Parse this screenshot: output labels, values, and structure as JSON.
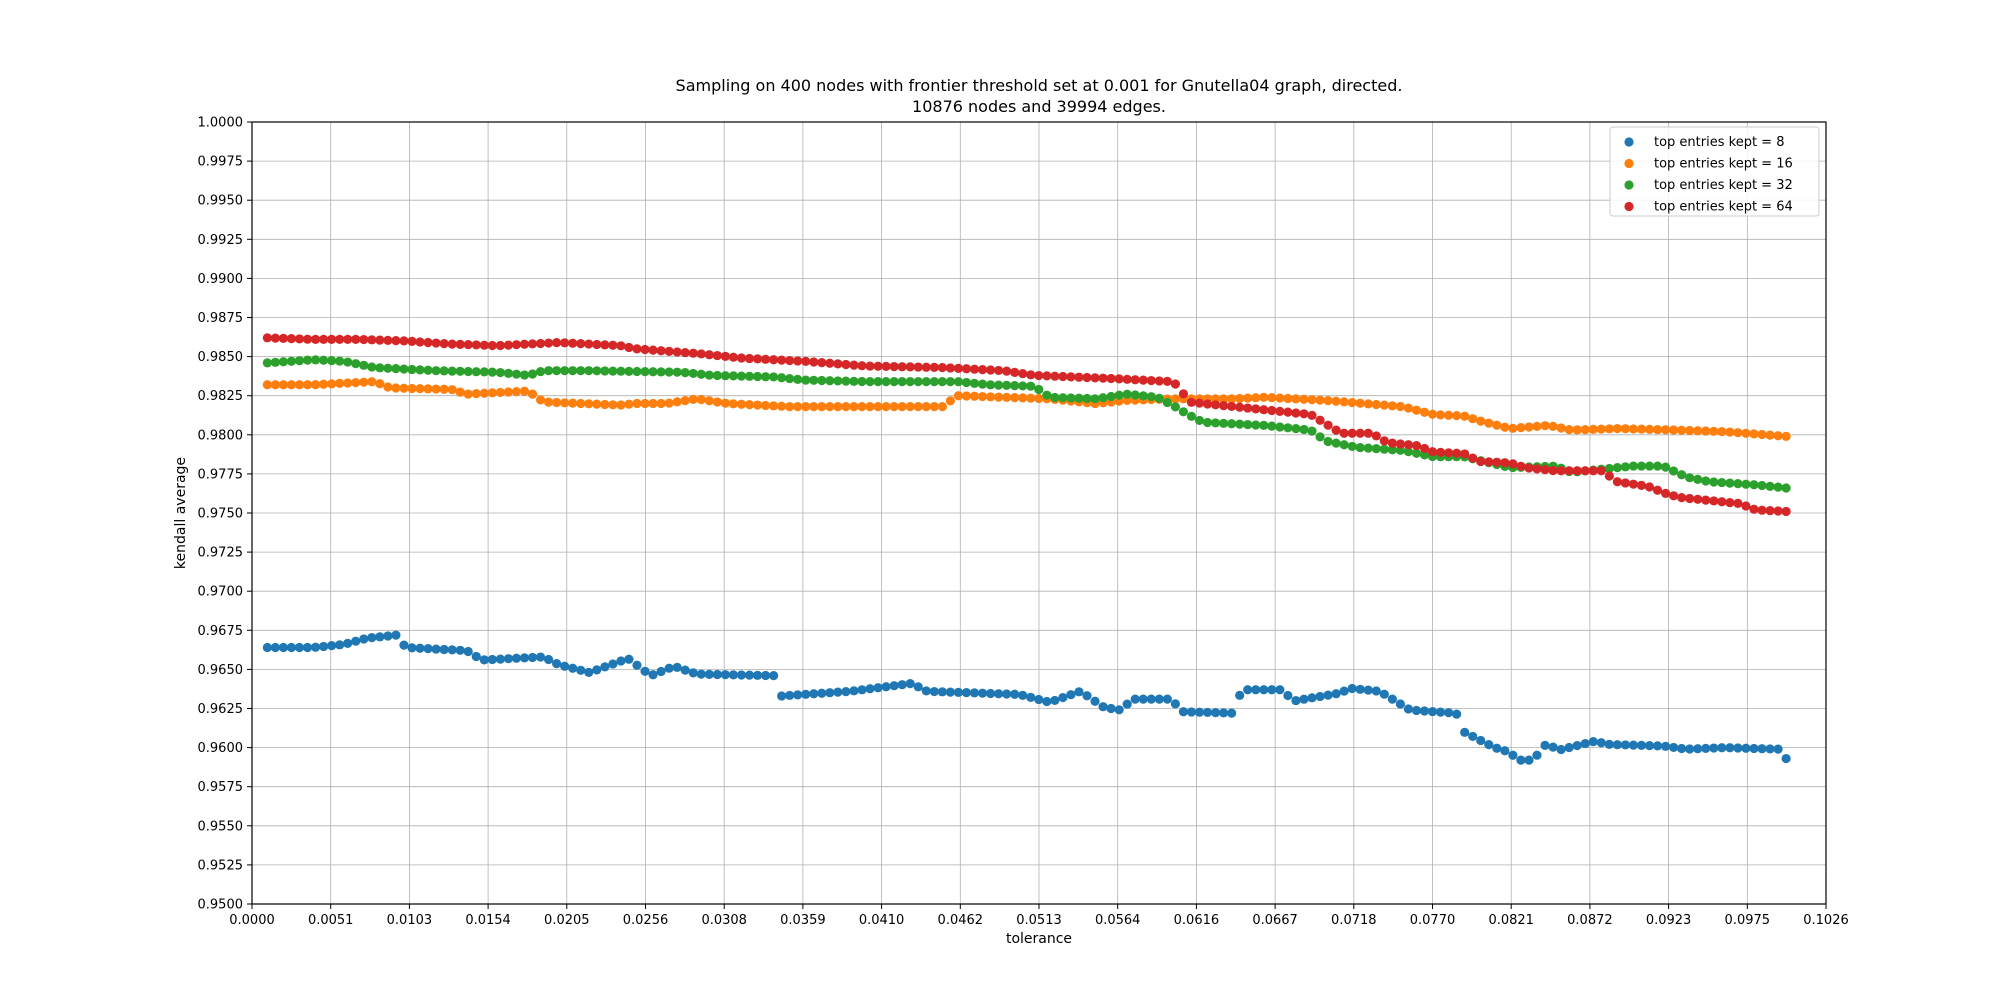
{
  "chart_data": {
    "type": "scatter",
    "title": "Sampling on 400 nodes with frontier threshold set at 0.001 for Gnutella04 graph, directed.",
    "subtitle": "10876 nodes and 39994 edges.",
    "xlabel": "tolerance",
    "ylabel": "kendall average",
    "xlim": [
      0.0,
      0.1026
    ],
    "ylim": [
      0.95,
      1.0
    ],
    "xticks": [
      "0.0000",
      "0.0051",
      "0.0103",
      "0.0154",
      "0.0205",
      "0.0256",
      "0.0308",
      "0.0359",
      "0.0410",
      "0.0462",
      "0.0513",
      "0.0564",
      "0.0616",
      "0.0667",
      "0.0718",
      "0.0770",
      "0.0821",
      "0.0872",
      "0.0923",
      "0.0975",
      "0.1026"
    ],
    "yticks": [
      "0.9500",
      "0.9525",
      "0.9550",
      "0.9575",
      "0.9600",
      "0.9625",
      "0.9650",
      "0.9675",
      "0.9700",
      "0.9725",
      "0.9750",
      "0.9775",
      "0.9800",
      "0.9825",
      "0.9850",
      "0.9875",
      "0.9900",
      "0.9925",
      "0.9950",
      "0.9975",
      "1.0000"
    ],
    "grid": true,
    "legend_position": "top-right",
    "x_range_points": [
      0.001,
      0.1
    ],
    "points_per_series": 190,
    "series": [
      {
        "name": "top entries kept = 8",
        "color": "#1f77b4",
        "anchors": [
          [
            0.001,
            0.9664
          ],
          [
            0.004,
            0.9664
          ],
          [
            0.006,
            0.9666
          ],
          [
            0.0075,
            0.967
          ],
          [
            0.0095,
            0.9672
          ],
          [
            0.01,
            0.9664
          ],
          [
            0.014,
            0.9662
          ],
          [
            0.015,
            0.9656
          ],
          [
            0.019,
            0.9658
          ],
          [
            0.02,
            0.9653
          ],
          [
            0.022,
            0.9648
          ],
          [
            0.0245,
            0.9657
          ],
          [
            0.026,
            0.9646
          ],
          [
            0.0275,
            0.9652
          ],
          [
            0.029,
            0.9647
          ],
          [
            0.034,
            0.9646
          ],
          [
            0.0345,
            0.9633
          ],
          [
            0.039,
            0.9636
          ],
          [
            0.043,
            0.9641
          ],
          [
            0.044,
            0.9636
          ],
          [
            0.05,
            0.9634
          ],
          [
            0.052,
            0.9629
          ],
          [
            0.054,
            0.9636
          ],
          [
            0.0555,
            0.9626
          ],
          [
            0.0565,
            0.9624
          ],
          [
            0.0575,
            0.9631
          ],
          [
            0.06,
            0.9631
          ],
          [
            0.0605,
            0.9623
          ],
          [
            0.064,
            0.9622
          ],
          [
            0.0645,
            0.9637
          ],
          [
            0.067,
            0.9637
          ],
          [
            0.068,
            0.963
          ],
          [
            0.071,
            0.9635
          ],
          [
            0.0715,
            0.9638
          ],
          [
            0.0735,
            0.9636
          ],
          [
            0.0755,
            0.9624
          ],
          [
            0.0785,
            0.9622
          ],
          [
            0.079,
            0.961
          ],
          [
            0.081,
            0.96
          ],
          [
            0.082,
            0.9597
          ],
          [
            0.0825,
            0.9592
          ],
          [
            0.0835,
            0.9592
          ],
          [
            0.0845,
            0.9604
          ],
          [
            0.085,
            0.9598
          ],
          [
            0.0875,
            0.9604
          ],
          [
            0.0885,
            0.9602
          ],
          [
            0.092,
            0.9601
          ],
          [
            0.0935,
            0.9599
          ],
          [
            0.096,
            0.96
          ],
          [
            0.0995,
            0.9599
          ],
          [
            0.1,
            0.9593
          ]
        ]
      },
      {
        "name": "top entries kept = 16",
        "color": "#ff7f0e",
        "anchors": [
          [
            0.001,
            0.9832
          ],
          [
            0.004,
            0.9832
          ],
          [
            0.008,
            0.9834
          ],
          [
            0.009,
            0.983
          ],
          [
            0.013,
            0.9829
          ],
          [
            0.014,
            0.9826
          ],
          [
            0.018,
            0.9828
          ],
          [
            0.019,
            0.9821
          ],
          [
            0.024,
            0.9819
          ],
          [
            0.025,
            0.982
          ],
          [
            0.027,
            0.982
          ],
          [
            0.029,
            0.9823
          ],
          [
            0.031,
            0.982
          ],
          [
            0.035,
            0.9818
          ],
          [
            0.045,
            0.9818
          ],
          [
            0.046,
            0.9825
          ],
          [
            0.052,
            0.9823
          ],
          [
            0.055,
            0.982
          ],
          [
            0.057,
            0.9822
          ],
          [
            0.06,
            0.9823
          ],
          [
            0.064,
            0.9823
          ],
          [
            0.066,
            0.9824
          ],
          [
            0.07,
            0.9822
          ],
          [
            0.075,
            0.9818
          ],
          [
            0.077,
            0.9813
          ],
          [
            0.079,
            0.9812
          ],
          [
            0.08,
            0.9809
          ],
          [
            0.082,
            0.9804
          ],
          [
            0.0845,
            0.9806
          ],
          [
            0.086,
            0.9803
          ],
          [
            0.089,
            0.9804
          ],
          [
            0.093,
            0.9803
          ],
          [
            0.096,
            0.9802
          ],
          [
            0.1,
            0.9799
          ]
        ]
      },
      {
        "name": "top entries kept = 32",
        "color": "#2ca02c",
        "anchors": [
          [
            0.001,
            0.9846
          ],
          [
            0.004,
            0.9848
          ],
          [
            0.006,
            0.9847
          ],
          [
            0.008,
            0.9843
          ],
          [
            0.012,
            0.9841
          ],
          [
            0.016,
            0.984
          ],
          [
            0.018,
            0.9838
          ],
          [
            0.019,
            0.9841
          ],
          [
            0.022,
            0.9841
          ],
          [
            0.028,
            0.984
          ],
          [
            0.03,
            0.9838
          ],
          [
            0.034,
            0.9837
          ],
          [
            0.036,
            0.9835
          ],
          [
            0.04,
            0.9834
          ],
          [
            0.046,
            0.9834
          ],
          [
            0.048,
            0.9832
          ],
          [
            0.051,
            0.9831
          ],
          [
            0.052,
            0.9824
          ],
          [
            0.055,
            0.9823
          ],
          [
            0.057,
            0.9826
          ],
          [
            0.059,
            0.9824
          ],
          [
            0.06,
            0.9819
          ],
          [
            0.061,
            0.9813
          ],
          [
            0.062,
            0.9808
          ],
          [
            0.066,
            0.9806
          ],
          [
            0.069,
            0.9803
          ],
          [
            0.07,
            0.9796
          ],
          [
            0.072,
            0.9792
          ],
          [
            0.075,
            0.979
          ],
          [
            0.077,
            0.9786
          ],
          [
            0.079,
            0.9786
          ],
          [
            0.082,
            0.9779
          ],
          [
            0.085,
            0.978
          ],
          [
            0.086,
            0.9776
          ],
          [
            0.09,
            0.978
          ],
          [
            0.092,
            0.978
          ],
          [
            0.0935,
            0.9773
          ],
          [
            0.095,
            0.977
          ],
          [
            0.098,
            0.9768
          ],
          [
            0.1,
            0.9766
          ]
        ]
      },
      {
        "name": "top entries kept = 64",
        "color": "#d62728",
        "anchors": [
          [
            0.001,
            0.9862
          ],
          [
            0.004,
            0.9861
          ],
          [
            0.007,
            0.9861
          ],
          [
            0.01,
            0.986
          ],
          [
            0.013,
            0.9858
          ],
          [
            0.016,
            0.9857
          ],
          [
            0.02,
            0.9859
          ],
          [
            0.024,
            0.9857
          ],
          [
            0.025,
            0.9855
          ],
          [
            0.029,
            0.9852
          ],
          [
            0.032,
            0.9849
          ],
          [
            0.036,
            0.9847
          ],
          [
            0.04,
            0.9844
          ],
          [
            0.045,
            0.9843
          ],
          [
            0.049,
            0.9841
          ],
          [
            0.051,
            0.9838
          ],
          [
            0.056,
            0.9836
          ],
          [
            0.06,
            0.9834
          ],
          [
            0.0605,
            0.983
          ],
          [
            0.061,
            0.9821
          ],
          [
            0.064,
            0.9818
          ],
          [
            0.066,
            0.9816
          ],
          [
            0.069,
            0.9813
          ],
          [
            0.07,
            0.9807
          ],
          [
            0.071,
            0.9801
          ],
          [
            0.073,
            0.9801
          ],
          [
            0.074,
            0.9795
          ],
          [
            0.076,
            0.9793
          ],
          [
            0.077,
            0.9789
          ],
          [
            0.079,
            0.9788
          ],
          [
            0.08,
            0.9783
          ],
          [
            0.082,
            0.9782
          ],
          [
            0.083,
            0.9779
          ],
          [
            0.085,
            0.9777
          ],
          [
            0.088,
            0.9777
          ],
          [
            0.089,
            0.977
          ],
          [
            0.091,
            0.9767
          ],
          [
            0.092,
            0.9763
          ],
          [
            0.093,
            0.976
          ],
          [
            0.095,
            0.9758
          ],
          [
            0.097,
            0.9756
          ],
          [
            0.098,
            0.9752
          ],
          [
            0.1,
            0.9751
          ]
        ]
      }
    ]
  }
}
